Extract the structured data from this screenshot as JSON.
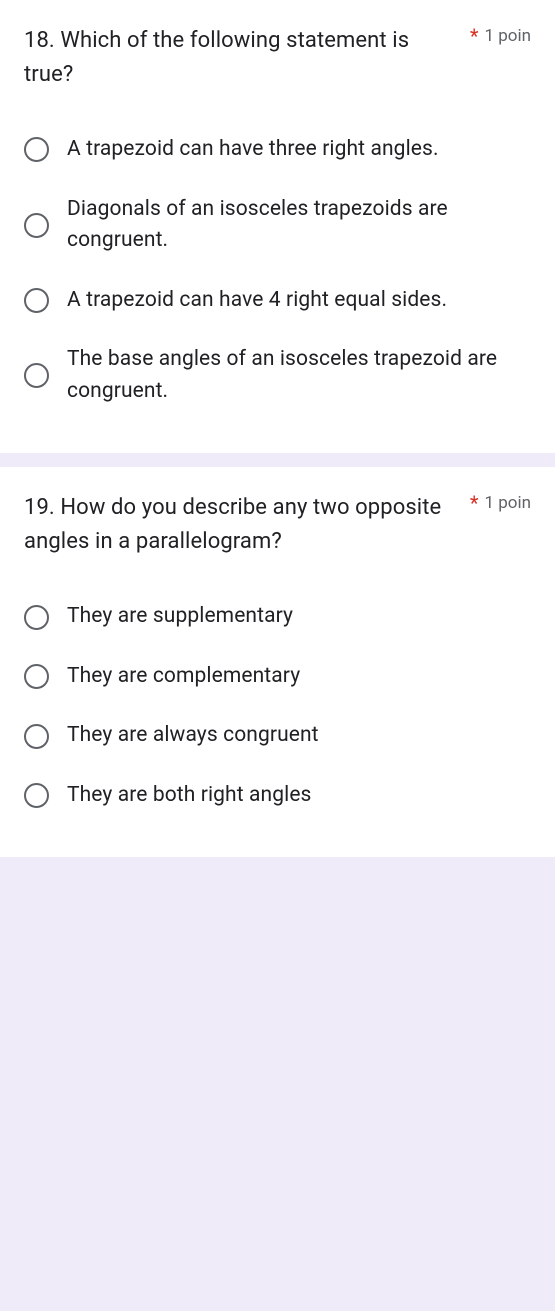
{
  "questions": [
    {
      "title": "18. Which of the following statement is true?",
      "required": true,
      "points": "1 poin",
      "options": [
        "A trapezoid can have three right angles.",
        "Diagonals of an isosceles trapezoids are congruent.",
        "A trapezoid can have 4 right equal sides.",
        "The base angles of an isosceles trapezoid are congruent."
      ]
    },
    {
      "title": "19. How do you describe any two opposite angles in a parallelogram?",
      "required": true,
      "points": "1 poin",
      "options": [
        "They are supplementary",
        "They are complementary",
        "They are always congruent",
        "They are both right angles"
      ]
    }
  ],
  "colors": {
    "background": "#f0ebf8",
    "card": "#ffffff",
    "text": "#202124",
    "secondary": "#5f6368",
    "required": "#d93025",
    "radio_border": "#5f6368"
  }
}
